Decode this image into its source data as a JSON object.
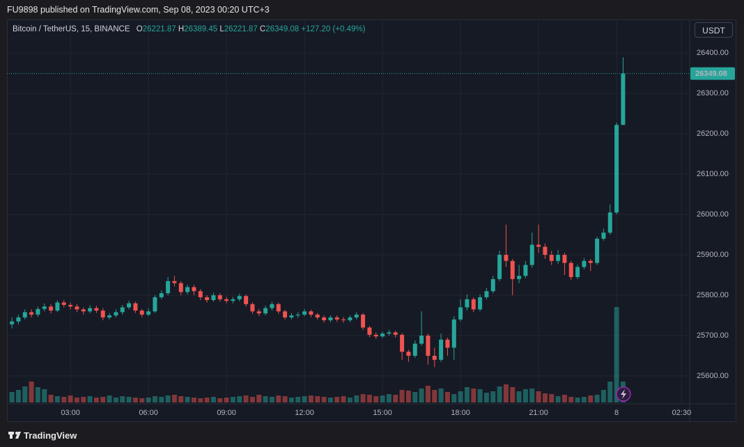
{
  "header": {
    "publisher": "FU9898 published on TradingView.com, Sep 08, 2023 00:20 UTC+3"
  },
  "footer": {
    "brand": "TradingView"
  },
  "chart_data": {
    "type": "candlestick",
    "symbol": "Bitcoin / TetherUS, 15, BINANCE",
    "ohlc_labels": [
      "O",
      "H",
      "L",
      "C"
    ],
    "change": "+127.20 (+0.49%)",
    "currency": "USDT",
    "up_color": "#26a69a",
    "down_color": "#ef5350",
    "grid": true,
    "xlim": [
      0.56,
      26.81
    ],
    "ylim": [
      25531,
      26483
    ],
    "volume_lim": [
      0,
      1500
    ],
    "xticks": [
      {
        "value": 3,
        "label": "03:00"
      },
      {
        "value": 6,
        "label": "06:00"
      },
      {
        "value": 9,
        "label": "09:00"
      },
      {
        "value": 12,
        "label": "12:00"
      },
      {
        "value": 15,
        "label": "15:00"
      },
      {
        "value": 18,
        "label": "18:00"
      },
      {
        "value": 21,
        "label": "21:00"
      },
      {
        "value": 24,
        "label": "8"
      },
      {
        "value": 26.5,
        "label": "02:30"
      }
    ],
    "yticks": [
      {
        "value": 25600,
        "label": "25600.00"
      },
      {
        "value": 25700,
        "label": "25700.00"
      },
      {
        "value": 25800,
        "label": "25800.00"
      },
      {
        "value": 25900,
        "label": "25900.00"
      },
      {
        "value": 26000,
        "label": "26000.00"
      },
      {
        "value": 26100,
        "label": "26100.00"
      },
      {
        "value": 26200,
        "label": "26200.00"
      },
      {
        "value": 26300,
        "label": "26300.00"
      },
      {
        "value": 26400,
        "label": "26400.00"
      }
    ],
    "x": [
      0.75,
      1,
      1.25,
      1.5,
      1.75,
      2,
      2.25,
      2.5,
      2.75,
      3,
      3.25,
      3.5,
      3.75,
      4,
      4.25,
      4.5,
      4.75,
      5,
      5.25,
      5.5,
      5.75,
      6,
      6.25,
      6.5,
      6.75,
      7,
      7.25,
      7.5,
      7.75,
      8,
      8.25,
      8.5,
      8.75,
      9,
      9.25,
      9.5,
      9.75,
      10,
      10.25,
      10.5,
      10.75,
      11,
      11.25,
      11.5,
      11.75,
      12,
      12.25,
      12.5,
      12.75,
      13,
      13.25,
      13.5,
      13.75,
      14,
      14.25,
      14.5,
      14.75,
      15,
      15.25,
      15.5,
      15.75,
      16,
      16.25,
      16.5,
      16.75,
      17,
      17.25,
      17.5,
      17.75,
      18,
      18.25,
      18.5,
      18.75,
      19,
      19.25,
      19.5,
      19.75,
      20,
      20.25,
      20.5,
      20.75,
      21,
      21.25,
      21.5,
      21.75,
      22,
      22.25,
      22.5,
      22.75,
      23,
      23.25,
      23.5,
      23.75,
      24,
      24.25
    ],
    "open": [
      25728,
      25735,
      25745,
      25758,
      25752,
      25766,
      25772,
      25762,
      25782,
      25776,
      25772,
      25765,
      25760,
      25768,
      25762,
      25745,
      25750,
      25758,
      25770,
      25780,
      25762,
      25752,
      25760,
      25795,
      25805,
      25835,
      25830,
      25808,
      25820,
      25810,
      25795,
      25788,
      25800,
      25790,
      25786,
      25790,
      25798,
      25778,
      25760,
      25755,
      25768,
      25778,
      25760,
      25745,
      25750,
      25752,
      25760,
      25752,
      25745,
      25738,
      25745,
      25740,
      25738,
      25745,
      25752,
      25720,
      25702,
      25698,
      25705,
      25708,
      25702,
      25660,
      25650,
      25680,
      25700,
      25650,
      25640,
      25690,
      25670,
      25740,
      25770,
      25790,
      25765,
      25795,
      25810,
      25840,
      25900,
      25885,
      25840,
      25848,
      25875,
      25925,
      25920,
      25900,
      25885,
      25900,
      25880,
      25845,
      25870,
      25885,
      25880,
      25940,
      25955,
      26005,
      26221.87
    ],
    "high": [
      25745,
      25752,
      25765,
      25765,
      25772,
      25780,
      25778,
      25788,
      25788,
      25782,
      25778,
      25770,
      25775,
      25774,
      25768,
      25756,
      25765,
      25776,
      25786,
      25784,
      25766,
      25768,
      25800,
      25812,
      25845,
      25848,
      25835,
      25826,
      25826,
      25815,
      25800,
      25806,
      25805,
      25796,
      25796,
      25804,
      25802,
      25782,
      25766,
      25774,
      25784,
      25782,
      25764,
      25756,
      25758,
      25766,
      25764,
      25756,
      25750,
      25750,
      25750,
      25746,
      25750,
      25758,
      25756,
      25724,
      25708,
      25710,
      25714,
      25712,
      25706,
      25665,
      25688,
      25760,
      25705,
      25670,
      25705,
      25695,
      25748,
      25790,
      25802,
      25795,
      25802,
      25818,
      25848,
      25910,
      25975,
      25890,
      25875,
      25885,
      25955,
      25975,
      25928,
      25910,
      25912,
      25905,
      25885,
      25876,
      25892,
      25890,
      25945,
      25965,
      26025,
      26228,
      26389.45
    ],
    "low": [
      25718,
      25728,
      25740,
      25745,
      25746,
      25760,
      25755,
      25758,
      25770,
      25765,
      25758,
      25752,
      25755,
      25756,
      25738,
      25740,
      25745,
      25752,
      25765,
      25756,
      25746,
      25748,
      25756,
      25790,
      25800,
      25822,
      25800,
      25802,
      25800,
      25788,
      25782,
      25784,
      25784,
      25780,
      25780,
      25785,
      25772,
      25754,
      25748,
      25750,
      25762,
      25754,
      25740,
      25740,
      25744,
      25748,
      25746,
      25740,
      25732,
      25733,
      25734,
      25732,
      25733,
      25740,
      25714,
      25696,
      25692,
      25694,
      25700,
      25695,
      25640,
      25635,
      25645,
      25675,
      25628,
      25622,
      25635,
      25650,
      25640,
      25735,
      25762,
      25758,
      25760,
      25790,
      25805,
      25835,
      25870,
      25800,
      25830,
      25842,
      25868,
      25905,
      25890,
      25875,
      25878,
      25850,
      25838,
      25840,
      25864,
      25860,
      25875,
      25935,
      25950,
      26000,
      26221.87
    ],
    "close": [
      25735,
      25745,
      25758,
      25752,
      25766,
      25772,
      25762,
      25782,
      25776,
      25772,
      25765,
      25760,
      25768,
      25762,
      25745,
      25750,
      25758,
      25770,
      25780,
      25762,
      25752,
      25760,
      25795,
      25805,
      25835,
      25830,
      25808,
      25820,
      25810,
      25795,
      25788,
      25800,
      25790,
      25786,
      25790,
      25798,
      25778,
      25760,
      25755,
      25768,
      25778,
      25760,
      25745,
      25750,
      25752,
      25760,
      25752,
      25745,
      25738,
      25745,
      25740,
      25738,
      25745,
      25752,
      25720,
      25702,
      25698,
      25705,
      25708,
      25702,
      25660,
      25650,
      25680,
      25700,
      25650,
      25640,
      25690,
      25670,
      25740,
      25770,
      25790,
      25765,
      25795,
      25810,
      25840,
      25900,
      25885,
      25840,
      25848,
      25875,
      25925,
      25920,
      25900,
      25885,
      25900,
      25880,
      25845,
      25870,
      25885,
      25880,
      25940,
      25955,
      26005,
      26221.87,
      26349.08
    ],
    "volume": [
      150,
      180,
      230,
      300,
      220,
      190,
      110,
      90,
      80,
      100,
      70,
      80,
      90,
      70,
      80,
      100,
      70,
      90,
      80,
      70,
      60,
      70,
      90,
      80,
      100,
      110,
      90,
      80,
      70,
      60,
      70,
      80,
      60,
      70,
      80,
      90,
      100,
      80,
      110,
      90,
      80,
      100,
      90,
      70,
      80,
      90,
      100,
      90,
      80,
      70,
      80,
      90,
      70,
      100,
      120,
      110,
      90,
      100,
      120,
      110,
      180,
      170,
      150,
      200,
      240,
      180,
      200,
      150,
      120,
      160,
      220,
      200,
      190,
      140,
      160,
      230,
      260,
      220,
      160,
      190,
      200,
      160,
      130,
      120,
      90,
      110,
      80,
      70,
      80,
      100,
      110,
      180,
      300,
      1370,
      300
    ]
  }
}
